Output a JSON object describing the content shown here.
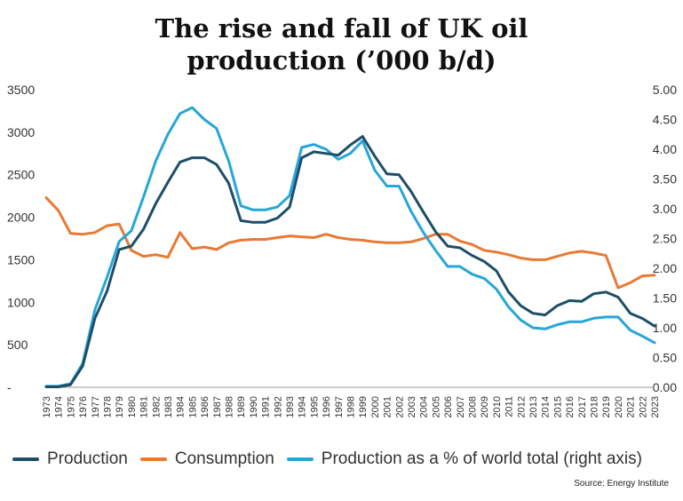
{
  "header": {
    "title_line1": "The rise and fall of UK oil",
    "title_line2": "production (’000 b/d)"
  },
  "source": "Source: Energy Institute",
  "colors": {
    "production": "#1d4e68",
    "consumption": "#e87a33",
    "share": "#27a6d8",
    "axis_text": "#333333",
    "baseline": "#999999"
  },
  "chart_data": {
    "type": "line",
    "title": "The rise and fall of UK oil production (’000 b/d)",
    "xlabel": "",
    "ylabel": "",
    "x": [
      1973,
      1974,
      1975,
      1976,
      1977,
      1978,
      1979,
      1980,
      1981,
      1982,
      1983,
      1984,
      1985,
      1986,
      1987,
      1988,
      1989,
      1990,
      1991,
      1992,
      1993,
      1994,
      1995,
      1996,
      1997,
      1998,
      1999,
      2000,
      2001,
      2002,
      2003,
      2004,
      2005,
      2006,
      2007,
      2008,
      2009,
      2010,
      2011,
      2012,
      2013,
      2014,
      2015,
      2016,
      2017,
      2018,
      2019,
      2020,
      2021,
      2022,
      2023
    ],
    "left_axis": {
      "min": 0,
      "max": 3500,
      "ticks": [
        "-",
        "500",
        "1000",
        "1500",
        "2000",
        "2500",
        "3000",
        "3500"
      ]
    },
    "right_axis": {
      "min": 0,
      "max": 5,
      "ticks": [
        "0.00",
        "0.50",
        "1.00",
        "1.50",
        "2.00",
        "2.50",
        "3.00",
        "3.50",
        "4.00",
        "4.50",
        "5.00"
      ]
    },
    "grid": false,
    "legend_position": "bottom",
    "series": [
      {
        "name": "Production",
        "axis": "left",
        "values": [
          5,
          5,
          30,
          250,
          810,
          1130,
          1620,
          1660,
          1860,
          2160,
          2410,
          2650,
          2700,
          2700,
          2620,
          2400,
          1960,
          1940,
          1940,
          1990,
          2120,
          2700,
          2770,
          2750,
          2730,
          2850,
          2950,
          2720,
          2510,
          2500,
          2300,
          2060,
          1830,
          1660,
          1640,
          1550,
          1480,
          1370,
          1120,
          960,
          870,
          850,
          960,
          1020,
          1010,
          1100,
          1120,
          1060,
          870,
          810,
          720
        ]
      },
      {
        "name": "Consumption",
        "axis": "left",
        "values": [
          2230,
          2080,
          1810,
          1800,
          1820,
          1900,
          1920,
          1610,
          1540,
          1560,
          1530,
          1820,
          1630,
          1650,
          1620,
          1700,
          1730,
          1740,
          1740,
          1760,
          1780,
          1770,
          1760,
          1800,
          1760,
          1740,
          1730,
          1710,
          1700,
          1700,
          1710,
          1750,
          1800,
          1800,
          1720,
          1680,
          1610,
          1590,
          1560,
          1520,
          1500,
          1500,
          1540,
          1580,
          1600,
          1580,
          1550,
          1170,
          1230,
          1310,
          1320
        ]
      },
      {
        "name": "Production as a % of world total (right axis)",
        "axis": "right",
        "values": [
          0.02,
          0.02,
          0.06,
          0.4,
          1.3,
          1.85,
          2.45,
          2.63,
          3.2,
          3.8,
          4.25,
          4.6,
          4.7,
          4.5,
          4.35,
          3.8,
          3.05,
          2.98,
          2.98,
          3.03,
          3.22,
          4.03,
          4.08,
          4.0,
          3.83,
          3.93,
          4.14,
          3.65,
          3.38,
          3.38,
          2.95,
          2.6,
          2.3,
          2.03,
          2.03,
          1.9,
          1.83,
          1.65,
          1.35,
          1.13,
          1.0,
          0.98,
          1.05,
          1.1,
          1.1,
          1.16,
          1.18,
          1.18,
          0.96,
          0.86,
          0.75
        ]
      }
    ]
  }
}
